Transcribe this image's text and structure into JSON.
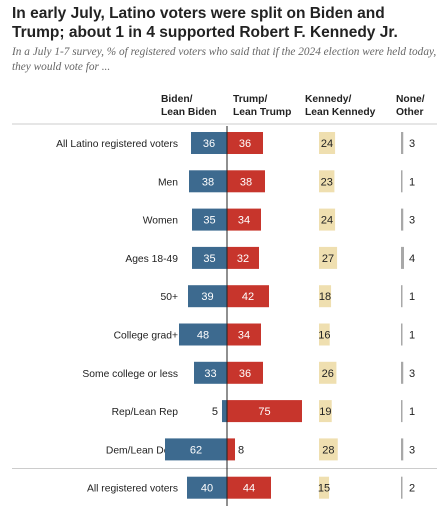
{
  "title": "In early July, Latino voters were split on Biden and Trump; about 1 in 4 supported Robert F. Kennedy Jr.",
  "subtitle": "In a July 1-7 survey, % of registered voters who said that if the 2024 election were held today, they would vote for ...",
  "colors": {
    "biden": "#3d6a8f",
    "trump": "#c7352c",
    "kennedy": "#efdfb0",
    "none": "#a8a8a8",
    "divider": "#cccccc",
    "axis": "#222222"
  },
  "chart_data": {
    "type": "bar",
    "columns": [
      {
        "key": "biden",
        "label_lines": [
          "Biden/",
          "Lean Biden"
        ]
      },
      {
        "key": "trump",
        "label_lines": [
          "Trump/",
          "Lean Trump"
        ]
      },
      {
        "key": "kennedy",
        "label_lines": [
          "Kennedy/",
          "Lean Kennedy"
        ]
      },
      {
        "key": "none",
        "label_lines": [
          "None/",
          "Other"
        ]
      }
    ],
    "categories": [
      "All Latino registered voters",
      "Men",
      "Women",
      "Ages 18-49",
      "50+",
      "College grad+",
      "Some college or less",
      "Rep/Lean Rep",
      "Dem/Lean Dem",
      "All registered voters"
    ],
    "series": [
      {
        "key": "biden",
        "values": [
          36,
          38,
          35,
          35,
          39,
          48,
          33,
          5,
          62,
          40
        ]
      },
      {
        "key": "trump",
        "values": [
          36,
          38,
          34,
          32,
          42,
          34,
          36,
          75,
          8,
          44
        ]
      },
      {
        "key": "kennedy",
        "values": [
          24,
          23,
          24,
          27,
          18,
          16,
          26,
          19,
          28,
          15
        ]
      },
      {
        "key": "none",
        "values": [
          3,
          1,
          3,
          4,
          1,
          1,
          3,
          1,
          3,
          2
        ]
      }
    ]
  }
}
